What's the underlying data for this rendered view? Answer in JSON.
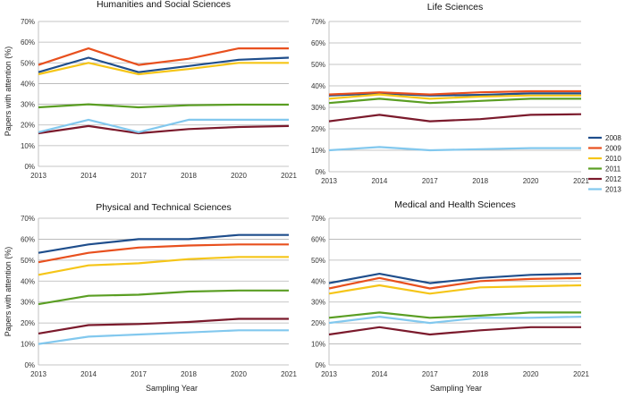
{
  "chart_data": {
    "type": "line",
    "ylabel": "Papers with attention (%)",
    "xlabel": "Sampling Year",
    "categories": [
      "2013",
      "2014",
      "2017",
      "2018",
      "2020",
      "2021"
    ],
    "ylim": [
      0,
      70
    ],
    "yticks": [
      "0%",
      "10%",
      "20%",
      "30%",
      "40%",
      "50%",
      "60%",
      "70%"
    ],
    "legend": {
      "placement": "right",
      "items": [
        {
          "name": "2008",
          "color": "#1f4e8c"
        },
        {
          "name": "2009",
          "color": "#e8501e"
        },
        {
          "name": "2010",
          "color": "#f5c518"
        },
        {
          "name": "2011",
          "color": "#5a9e23"
        },
        {
          "name": "2012",
          "color": "#7b1a2c"
        },
        {
          "name": "2013",
          "color": "#82c8ee"
        }
      ]
    },
    "panels": [
      {
        "title": "Humanities and Social Sciences",
        "series": [
          {
            "name": "2008",
            "values": [
              45.5,
              52.5,
              45.5,
              48.5,
              51.5,
              52.5
            ]
          },
          {
            "name": "2009",
            "values": [
              49,
              57,
              49,
              52,
              57,
              57
            ]
          },
          {
            "name": "2010",
            "values": [
              44.5,
              50,
              44.5,
              47,
              50,
              50
            ]
          },
          {
            "name": "2011",
            "values": [
              28.5,
              30,
              28.5,
              29.5,
              29.8,
              29.8
            ]
          },
          {
            "name": "2012",
            "values": [
              16,
              19.5,
              16,
              18,
              19,
              19.5
            ]
          },
          {
            "name": "2013",
            "values": [
              16.5,
              22.5,
              16.5,
              22.5,
              22.5,
              22.5
            ]
          }
        ]
      },
      {
        "title": "Life Sciences",
        "series": [
          {
            "name": "2008",
            "values": [
              35.5,
              36.5,
              35.5,
              35.8,
              36.5,
              36.5
            ]
          },
          {
            "name": "2009",
            "values": [
              36,
              37,
              36,
              37,
              37.5,
              37.5
            ]
          },
          {
            "name": "2010",
            "values": [
              34,
              36,
              34,
              35,
              35.5,
              35.5
            ]
          },
          {
            "name": "2011",
            "values": [
              32,
              34,
              32,
              33,
              34,
              34
            ]
          },
          {
            "name": "2012",
            "values": [
              23.5,
              26.5,
              23.5,
              24.5,
              26.5,
              26.8
            ]
          },
          {
            "name": "2013",
            "values": [
              10,
              11.5,
              10,
              10.5,
              11,
              11
            ]
          }
        ]
      },
      {
        "title": "Physical and Technical Sciences",
        "series": [
          {
            "name": "2008",
            "values": [
              53.5,
              57.5,
              60,
              60,
              62,
              62
            ]
          },
          {
            "name": "2009",
            "values": [
              49,
              53.5,
              56,
              57,
              57.5,
              57.5
            ]
          },
          {
            "name": "2010",
            "values": [
              43,
              47.5,
              48.5,
              50.5,
              51.5,
              51.5
            ]
          },
          {
            "name": "2011",
            "values": [
              29,
              33,
              33.5,
              35,
              35.5,
              35.5
            ]
          },
          {
            "name": "2012",
            "values": [
              15,
              19,
              19.5,
              20.5,
              22,
              22
            ]
          },
          {
            "name": "2013",
            "values": [
              10,
              13.5,
              14.5,
              15.5,
              16.5,
              16.5
            ]
          }
        ]
      },
      {
        "title": "Medical and Health Sciences",
        "series": [
          {
            "name": "2008",
            "values": [
              39,
              43.5,
              39,
              41.5,
              43,
              43.5
            ]
          },
          {
            "name": "2009",
            "values": [
              36.5,
              41.5,
              36.5,
              40,
              41,
              41.5
            ]
          },
          {
            "name": "2010",
            "values": [
              34,
              38,
              34,
              37,
              37.5,
              38
            ]
          },
          {
            "name": "2011",
            "values": [
              22.5,
              25,
              22.5,
              23.5,
              25,
              25
            ]
          },
          {
            "name": "2012",
            "values": [
              14.5,
              18,
              14.5,
              16.5,
              18,
              18
            ]
          },
          {
            "name": "2013",
            "values": [
              20,
              23,
              20,
              22.5,
              22.5,
              23
            ]
          }
        ]
      }
    ]
  }
}
